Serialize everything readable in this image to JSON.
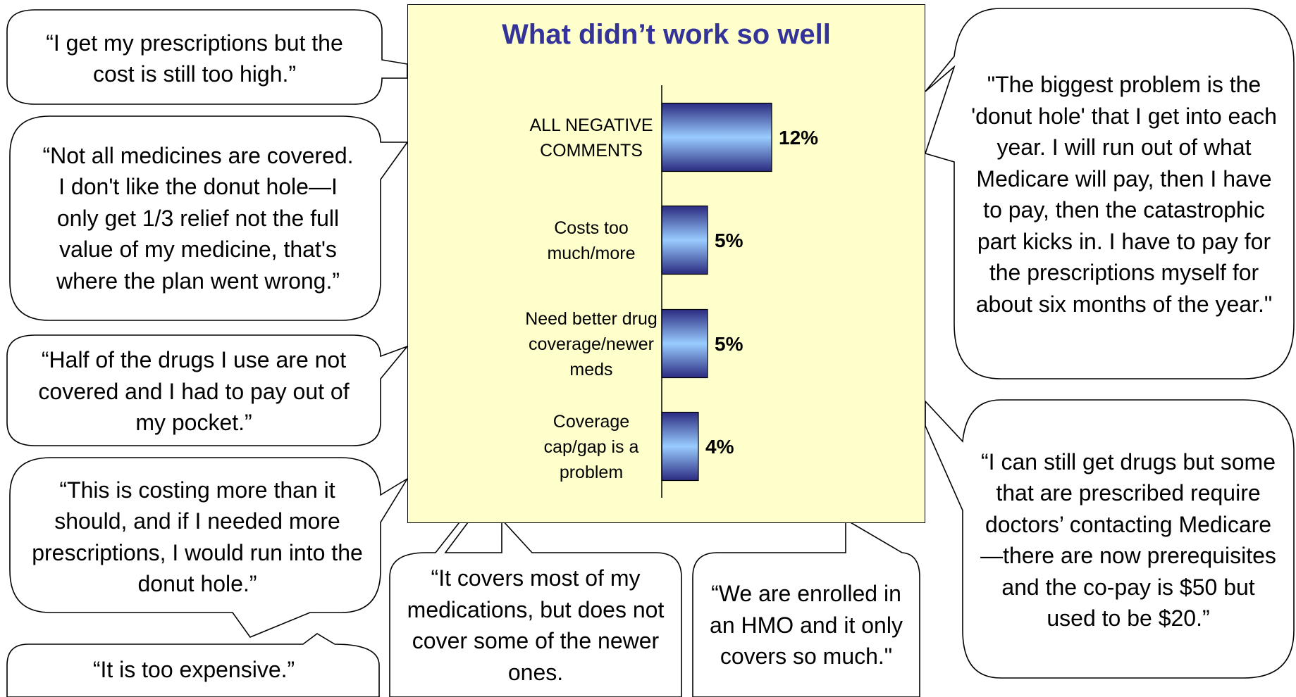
{
  "chart_data": {
    "type": "bar",
    "orientation": "horizontal",
    "title": "What didn’t work so well",
    "categories": [
      [
        "ALL NEGATIVE",
        "COMMENTS"
      ],
      [
        "Costs too",
        "much/more"
      ],
      [
        "Need better drug",
        "coverage/newer",
        "meds"
      ],
      [
        "Coverage",
        "cap/gap is a",
        "problem"
      ]
    ],
    "values": [
      12,
      5,
      5,
      4
    ],
    "value_labels": [
      "12%",
      "5%",
      "5%",
      "4%"
    ],
    "xlim": [
      0,
      25
    ],
    "grid": false,
    "legend": "none",
    "colors": {
      "bar_light": "#99ccff",
      "bar_dark": "#2b2b80",
      "panel": "#ffffcc",
      "title": "#333399"
    }
  },
  "quotes": {
    "q1": "“I get my prescriptions but the cost is still too high.”",
    "q2": "“Not all medicines are covered. I don't like the donut hole—I only get 1/3 relief not the full value of my medicine, that's where the plan went wrong.”",
    "q3": "“Half of the drugs I use are not covered and I had to pay out of my pocket.”",
    "q4": "“This is costing more than it should, and if I needed more prescriptions, I would run into the donut hole.”",
    "q5": "“It is too expensive.”",
    "q6": "“It covers most of my medications, but does not cover some of the newer ones.",
    "q7": "“We are enrolled in an HMO and it only covers so much.\"",
    "q8": "\"The biggest problem is the 'donut hole' that I get into each year.  I will run out of what Medicare will pay, then I have to pay, then the catastrophic part kicks in.  I have to pay for the prescriptions myself for about six months of the year.\"",
    "q9": "“I can still get drugs but some that are prescribed require doctors’ contacting Medicare—there are now prerequisites and the co-pay is $50 but used to be $20.”"
  }
}
